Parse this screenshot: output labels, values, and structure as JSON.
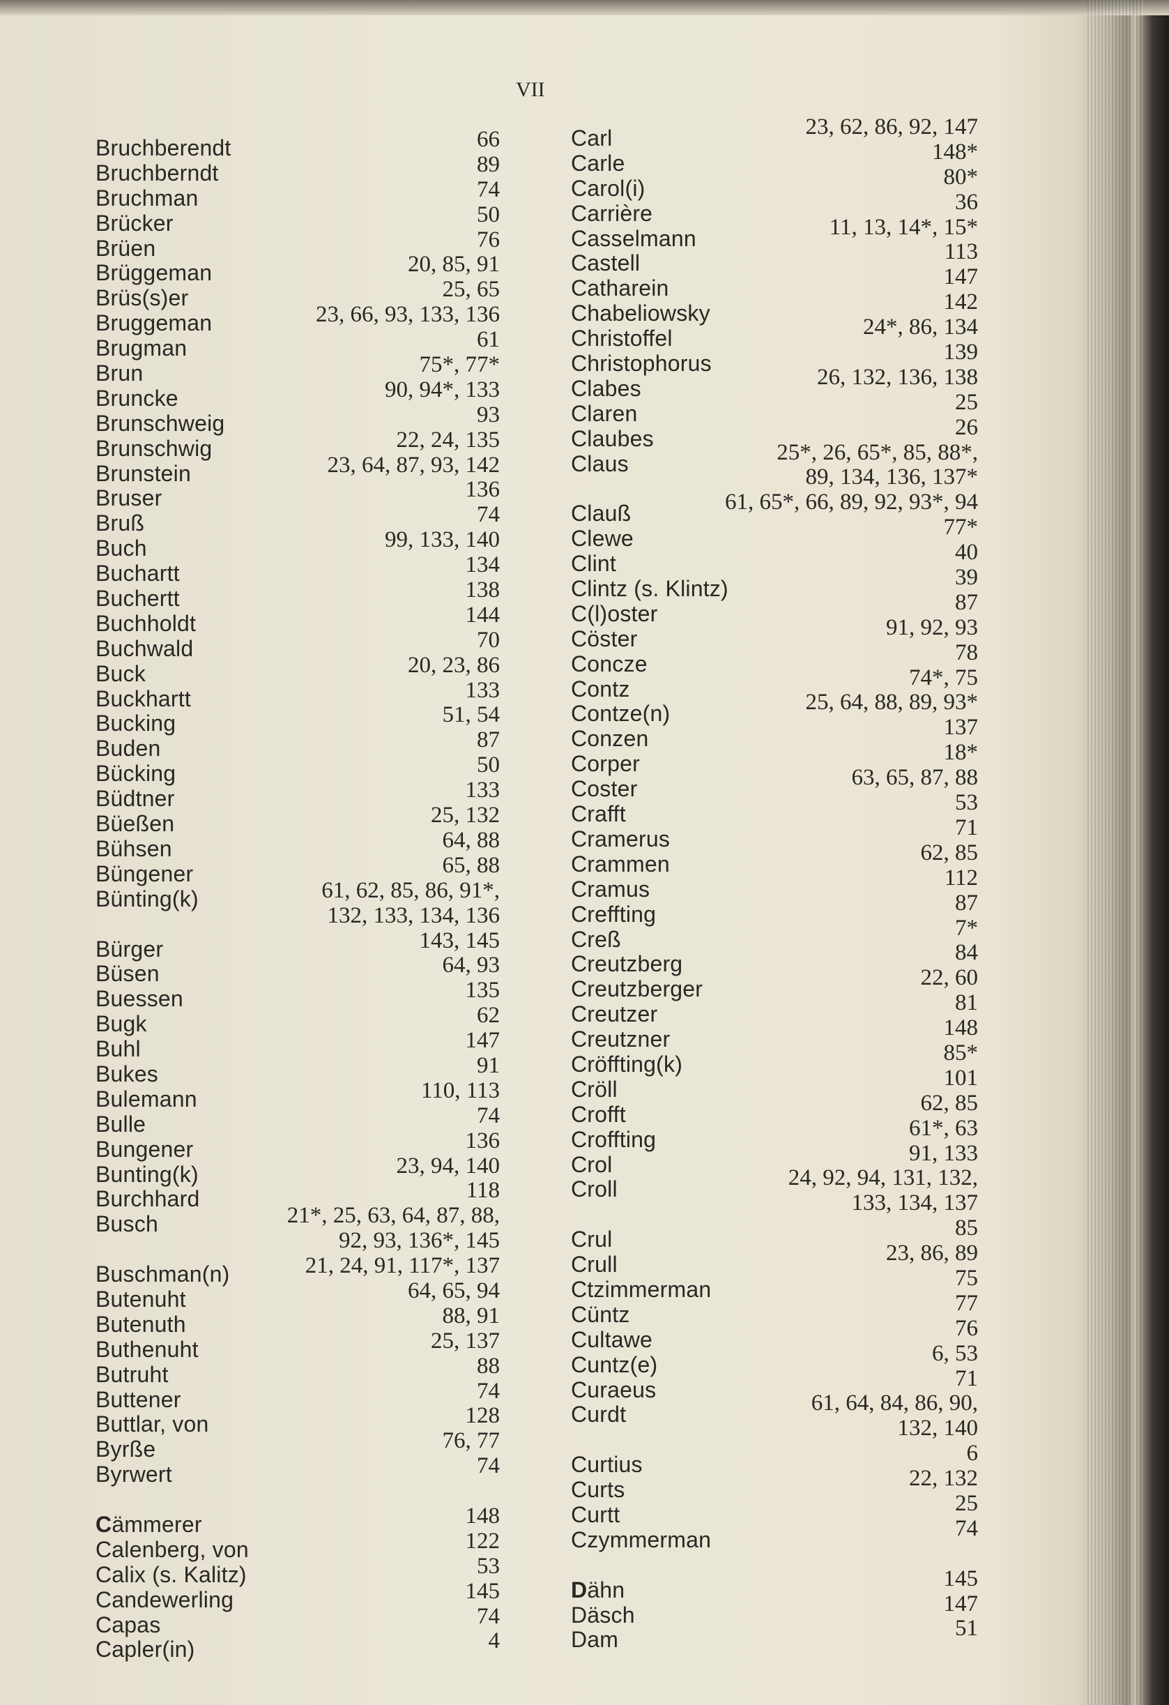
{
  "page_number": "VII",
  "left_column": [
    {
      "name": "Bruchberendt",
      "pages": "66"
    },
    {
      "name": "Bruchberndt",
      "pages": "89"
    },
    {
      "name": "Bruchman",
      "pages": "74"
    },
    {
      "name": "Brücker",
      "pages": "50"
    },
    {
      "name": "Brüen",
      "pages": "76"
    },
    {
      "name": "Brüggeman",
      "pages": "20, 85, 91"
    },
    {
      "name": "Brüs(s)er",
      "pages": "25, 65"
    },
    {
      "name": "Bruggeman",
      "pages": "23, 66, 93, 133, 136"
    },
    {
      "name": "Brugman",
      "pages": "61"
    },
    {
      "name": "Brun",
      "pages": "75*, 77*"
    },
    {
      "name": "Bruncke",
      "pages": "90, 94*, 133"
    },
    {
      "name": "Brunschweig",
      "pages": "93"
    },
    {
      "name": "Brunschwig",
      "pages": "22, 24, 135"
    },
    {
      "name": "Brunstein",
      "pages": "23, 64, 87, 93, 142"
    },
    {
      "name": "Bruser",
      "pages": "136"
    },
    {
      "name": "Bruß",
      "pages": "74"
    },
    {
      "name": "Buch",
      "pages": "99, 133, 140"
    },
    {
      "name": "Buchartt",
      "pages": "134"
    },
    {
      "name": "Buchertt",
      "pages": "138"
    },
    {
      "name": "Buchholdt",
      "pages": "144"
    },
    {
      "name": "Buchwald",
      "pages": "70"
    },
    {
      "name": "Buck",
      "pages": "20, 23, 86"
    },
    {
      "name": "Buckhartt",
      "pages": "133"
    },
    {
      "name": "Bucking",
      "pages": "51, 54"
    },
    {
      "name": "Buden",
      "pages": "87"
    },
    {
      "name": "Bücking",
      "pages": "50"
    },
    {
      "name": "Büdtner",
      "pages": "133"
    },
    {
      "name": "Büeßen",
      "pages": "25, 132"
    },
    {
      "name": "Bühsen",
      "pages": "64, 88"
    },
    {
      "name": "Büngener",
      "pages": "65, 88"
    },
    {
      "name": "Bünting(k)",
      "pages": "61, 62, 85, 86, 91*,"
    },
    {
      "name": "",
      "pages": "132, 133, 134, 136"
    },
    {
      "name": "Bürger",
      "pages": "143, 145"
    },
    {
      "name": "Büsen",
      "pages": "64, 93"
    },
    {
      "name": "Buessen",
      "pages": "135"
    },
    {
      "name": "Bugk",
      "pages": "62"
    },
    {
      "name": "Buhl",
      "pages": "147"
    },
    {
      "name": "Bukes",
      "pages": "91"
    },
    {
      "name": "Bulemann",
      "pages": "110, 113"
    },
    {
      "name": "Bulle",
      "pages": "74"
    },
    {
      "name": "Bungener",
      "pages": "136"
    },
    {
      "name": "Bunting(k)",
      "pages": "23, 94, 140"
    },
    {
      "name": "Burchhard",
      "pages": "118"
    },
    {
      "name": "Busch",
      "pages": "21*, 25, 63, 64, 87, 88,"
    },
    {
      "name": "",
      "pages": "92, 93, 136*, 145"
    },
    {
      "name": "Buschman(n)",
      "pages": "21, 24, 91, 117*, 137"
    },
    {
      "name": "Butenuht",
      "pages": "64, 65, 94"
    },
    {
      "name": "Butenuth",
      "pages": "88, 91"
    },
    {
      "name": "Buthenuht",
      "pages": "25, 137"
    },
    {
      "name": "Butruht",
      "pages": "88"
    },
    {
      "name": "Buttener",
      "pages": "74"
    },
    {
      "name": "Buttlar, von",
      "pages": "128"
    },
    {
      "name": "Byrße",
      "pages": "76, 77"
    },
    {
      "name": "Byrwert",
      "pages": "74"
    },
    {
      "name": "",
      "pages": ""
    },
    {
      "name": "Cämmerer",
      "pages": "148",
      "section_start": true
    },
    {
      "name": "Calenberg, von",
      "pages": "122"
    },
    {
      "name": "Calix (s. Kalitz)",
      "pages": "53"
    },
    {
      "name": "Candewerling",
      "pages": "145"
    },
    {
      "name": "Capas",
      "pages": "74"
    },
    {
      "name": "Capler(in)",
      "pages": "4"
    }
  ],
  "right_column": [
    {
      "name": "Carl",
      "pages": "23, 62, 86, 92, 147"
    },
    {
      "name": "Carle",
      "pages": "148*"
    },
    {
      "name": "Carol(i)",
      "pages": "80*"
    },
    {
      "name": "Carrière",
      "pages": "36"
    },
    {
      "name": "Casselmann",
      "pages": "11, 13, 14*, 15*"
    },
    {
      "name": "Castell",
      "pages": "113"
    },
    {
      "name": "Catharein",
      "pages": "147"
    },
    {
      "name": "Chabeliowsky",
      "pages": "142"
    },
    {
      "name": "Christoffel",
      "pages": "24*, 86, 134"
    },
    {
      "name": "Christophorus",
      "pages": "139"
    },
    {
      "name": "Clabes",
      "pages": "26, 132, 136, 138"
    },
    {
      "name": "Claren",
      "pages": "25"
    },
    {
      "name": "Claubes",
      "pages": "26"
    },
    {
      "name": "Claus",
      "pages": "25*, 26, 65*, 85, 88*,"
    },
    {
      "name": "",
      "pages": "89, 134, 136, 137*"
    },
    {
      "name": "Clauß",
      "pages": "61, 65*, 66, 89, 92, 93*, 94"
    },
    {
      "name": "Clewe",
      "pages": "77*"
    },
    {
      "name": "Clint",
      "pages": "40"
    },
    {
      "name": "Clintz (s. Klintz)",
      "pages": "39"
    },
    {
      "name": "C(l)oster",
      "pages": "87"
    },
    {
      "name": "Cöster",
      "pages": "91, 92, 93"
    },
    {
      "name": "Concze",
      "pages": "78"
    },
    {
      "name": "Contz",
      "pages": "74*, 75"
    },
    {
      "name": "Contze(n)",
      "pages": "25, 64, 88, 89, 93*"
    },
    {
      "name": "Conzen",
      "pages": "137"
    },
    {
      "name": "Corper",
      "pages": "18*"
    },
    {
      "name": "Coster",
      "pages": "63, 65, 87, 88"
    },
    {
      "name": "Crafft",
      "pages": "53"
    },
    {
      "name": "Cramerus",
      "pages": "71"
    },
    {
      "name": "Crammen",
      "pages": "62, 85"
    },
    {
      "name": "Cramus",
      "pages": "112"
    },
    {
      "name": "Creffting",
      "pages": "87"
    },
    {
      "name": "Creß",
      "pages": "7*"
    },
    {
      "name": "Creutzberg",
      "pages": "84"
    },
    {
      "name": "Creutzberger",
      "pages": "22, 60"
    },
    {
      "name": "Creutzer",
      "pages": "81"
    },
    {
      "name": "Creutzner",
      "pages": "148"
    },
    {
      "name": "Cröffting(k)",
      "pages": "85*"
    },
    {
      "name": "Cröll",
      "pages": "101"
    },
    {
      "name": "Crofft",
      "pages": "62, 85"
    },
    {
      "name": "Croffting",
      "pages": "61*, 63"
    },
    {
      "name": "Crol",
      "pages": "91, 133"
    },
    {
      "name": "Croll",
      "pages": "24, 92, 94, 131, 132,"
    },
    {
      "name": "",
      "pages": "133, 134, 137"
    },
    {
      "name": "Crul",
      "pages": "85"
    },
    {
      "name": "Crull",
      "pages": "23, 86, 89"
    },
    {
      "name": "Ctzimmerman",
      "pages": "75"
    },
    {
      "name": "Cüntz",
      "pages": "77"
    },
    {
      "name": "Cultawe",
      "pages": "76"
    },
    {
      "name": "Cuntz(e)",
      "pages": "6, 53"
    },
    {
      "name": "Curaeus",
      "pages": "71"
    },
    {
      "name": "Curdt",
      "pages": "61, 64, 84, 86, 90,"
    },
    {
      "name": "",
      "pages": "132, 140"
    },
    {
      "name": "Curtius",
      "pages": "6"
    },
    {
      "name": "Curts",
      "pages": "22, 132"
    },
    {
      "name": "Curtt",
      "pages": "25"
    },
    {
      "name": "Czymmerman",
      "pages": "74"
    },
    {
      "name": "",
      "pages": ""
    },
    {
      "name": "Dähn",
      "pages": "145",
      "section_start": true
    },
    {
      "name": "Däsch",
      "pages": "147"
    },
    {
      "name": "Dam",
      "pages": "51"
    }
  ]
}
